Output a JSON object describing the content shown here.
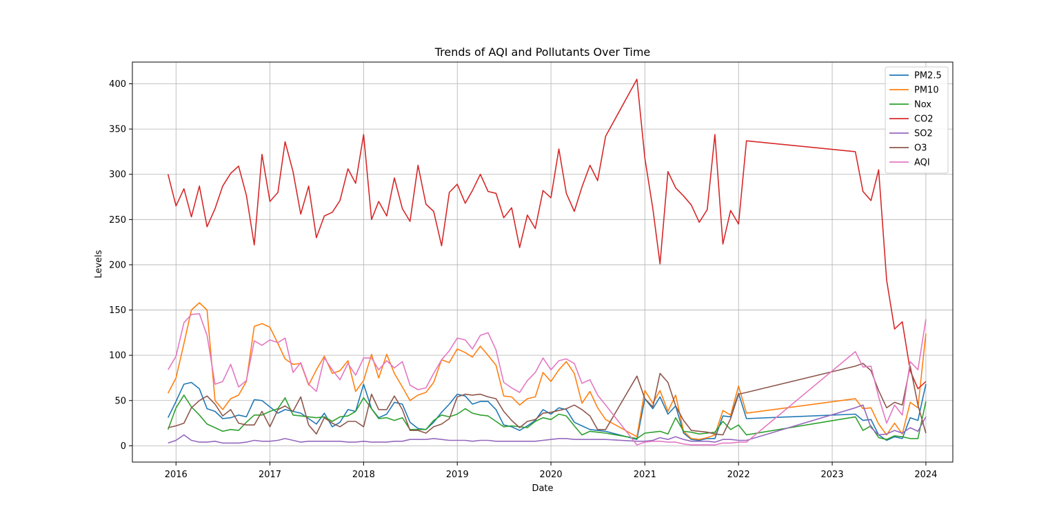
{
  "chart_data": {
    "type": "line",
    "title": "Trends of AQI and Pollutants Over Time",
    "xlabel": "Date",
    "ylabel": "Levels",
    "xlim": [
      "2015-07-15",
      "2024-04-15"
    ],
    "ylim": [
      -18,
      424
    ],
    "x_ticks": [
      "2016",
      "2017",
      "2018",
      "2019",
      "2020",
      "2021",
      "2022",
      "2023",
      "2024"
    ],
    "y_ticks": [
      0,
      50,
      100,
      150,
      200,
      250,
      300,
      350,
      400
    ],
    "grid": true,
    "legend_position": "top-right",
    "x": [
      "2015-12",
      "2016-01",
      "2016-02",
      "2016-03",
      "2016-04",
      "2016-05",
      "2016-06",
      "2016-07",
      "2016-08",
      "2016-09",
      "2016-10",
      "2016-11",
      "2016-12",
      "2017-01",
      "2017-02",
      "2017-03",
      "2017-04",
      "2017-05",
      "2017-06",
      "2017-07",
      "2017-08",
      "2017-09",
      "2017-10",
      "2017-11",
      "2017-12",
      "2018-01",
      "2018-02",
      "2018-03",
      "2018-04",
      "2018-05",
      "2018-06",
      "2018-07",
      "2018-08",
      "2018-09",
      "2018-10",
      "2018-11",
      "2018-12",
      "2019-01",
      "2019-02",
      "2019-03",
      "2019-04",
      "2019-05",
      "2019-06",
      "2019-07",
      "2019-08",
      "2019-09",
      "2019-10",
      "2019-11",
      "2019-12",
      "2020-01",
      "2020-02",
      "2020-03",
      "2020-04",
      "2020-05",
      "2020-06",
      "2020-07",
      "2020-08",
      "2020-12",
      "2021-01",
      "2021-02",
      "2021-03",
      "2021-04",
      "2021-05",
      "2021-06",
      "2021-07",
      "2021-08",
      "2021-09",
      "2021-10",
      "2021-11",
      "2021-12",
      "2022-01",
      "2022-02",
      "2023-04",
      "2023-05",
      "2023-06",
      "2023-07",
      "2023-08",
      "2023-09",
      "2023-10",
      "2023-11",
      "2023-12",
      "2024-01"
    ],
    "series": [
      {
        "name": "PM2.5",
        "color": "#1f77b4",
        "values": [
          31,
          49,
          68,
          70,
          63,
          41,
          38,
          30,
          31,
          34,
          32,
          51,
          50,
          43,
          36,
          40,
          38,
          36,
          30,
          24,
          36,
          21,
          26,
          40,
          38,
          68,
          41,
          31,
          35,
          48,
          46,
          26,
          19,
          18,
          26,
          37,
          46,
          57,
          55,
          46,
          49,
          49,
          40,
          23,
          21,
          17,
          22,
          28,
          40,
          35,
          42,
          40,
          26,
          22,
          18,
          17,
          16,
          7,
          52,
          41,
          54,
          35,
          44,
          14,
          7,
          6,
          8,
          8,
          33,
          32,
          58,
          30,
          35,
          28,
          29,
          12,
          6,
          10,
          8,
          31,
          28,
          68
        ]
      },
      {
        "name": "PM10",
        "color": "#ff7f0e",
        "values": [
          58,
          75,
          113,
          150,
          158,
          150,
          50,
          40,
          52,
          56,
          71,
          132,
          135,
          131,
          113,
          96,
          90,
          91,
          67,
          84,
          99,
          80,
          83,
          94,
          60,
          72,
          101,
          75,
          101,
          80,
          65,
          50,
          56,
          59,
          70,
          95,
          92,
          107,
          103,
          98,
          110,
          100,
          89,
          55,
          54,
          45,
          52,
          54,
          81,
          71,
          84,
          93,
          80,
          47,
          60,
          42,
          29,
          10,
          61,
          47,
          61,
          38,
          56,
          16,
          8,
          7,
          9,
          12,
          39,
          34,
          66,
          36,
          52,
          41,
          42,
          24,
          12,
          25,
          13,
          48,
          42,
          124
        ]
      },
      {
        "name": "Nox",
        "color": "#2ca02c",
        "values": [
          18,
          42,
          56,
          43,
          34,
          24,
          20,
          16,
          18,
          17,
          26,
          34,
          34,
          38,
          41,
          53,
          34,
          33,
          32,
          31,
          32,
          27,
          32,
          33,
          38,
          53,
          41,
          30,
          31,
          28,
          31,
          18,
          18,
          18,
          28,
          34,
          32,
          35,
          41,
          36,
          34,
          33,
          27,
          21,
          22,
          21,
          20,
          27,
          31,
          29,
          35,
          33,
          22,
          12,
          16,
          15,
          14,
          8,
          14,
          15,
          16,
          13,
          31,
          16,
          15,
          13,
          14,
          15,
          27,
          18,
          23,
          12,
          32,
          17,
          22,
          9,
          7,
          11,
          10,
          8,
          8,
          49
        ]
      },
      {
        "name": "CO2",
        "color": "#d62728",
        "values": [
          300,
          265,
          284,
          253,
          287,
          242,
          262,
          287,
          301,
          309,
          277,
          222,
          322,
          270,
          280,
          336,
          303,
          256,
          287,
          230,
          254,
          258,
          271,
          306,
          290,
          344,
          250,
          270,
          254,
          296,
          262,
          248,
          310,
          267,
          259,
          221,
          280,
          289,
          268,
          282,
          300,
          281,
          279,
          252,
          263,
          219,
          255,
          240,
          282,
          274,
          328,
          279,
          259,
          286,
          310,
          293,
          342,
          405,
          318,
          262,
          201,
          303,
          285,
          276,
          266,
          247,
          261,
          344,
          223,
          260,
          245,
          337,
          325,
          281,
          271,
          305,
          183,
          129,
          137,
          83,
          63,
          71
        ]
      },
      {
        "name": "SO2",
        "color": "#9467bd",
        "values": [
          3,
          6,
          12,
          6,
          4,
          4,
          5,
          3,
          3,
          3,
          4,
          6,
          5,
          5,
          6,
          8,
          6,
          4,
          5,
          5,
          5,
          5,
          5,
          4,
          4,
          5,
          4,
          4,
          4,
          5,
          5,
          7,
          7,
          7,
          8,
          7,
          6,
          6,
          6,
          5,
          6,
          6,
          5,
          5,
          5,
          5,
          5,
          5,
          6,
          7,
          8,
          8,
          7,
          7,
          7,
          7,
          7,
          5,
          5,
          6,
          9,
          7,
          10,
          7,
          5,
          5,
          5,
          4,
          7,
          7,
          6,
          6,
          42,
          45,
          20,
          12,
          13,
          17,
          14,
          20,
          16,
          32
        ]
      },
      {
        "name": "O3",
        "color": "#8c564b",
        "values": [
          20,
          22,
          25,
          42,
          50,
          55,
          46,
          33,
          40,
          25,
          23,
          23,
          38,
          21,
          40,
          44,
          38,
          54,
          23,
          13,
          31,
          25,
          21,
          27,
          27,
          21,
          57,
          40,
          40,
          55,
          40,
          17,
          17,
          14,
          21,
          24,
          30,
          54,
          57,
          56,
          57,
          54,
          52,
          38,
          28,
          20,
          27,
          29,
          36,
          37,
          39,
          41,
          45,
          40,
          33,
          18,
          18,
          77,
          52,
          43,
          80,
          70,
          44,
          28,
          17,
          16,
          15,
          13,
          12,
          30,
          57,
          59,
          88,
          91,
          83,
          61,
          42,
          48,
          45,
          88,
          45,
          14
        ]
      },
      {
        "name": "AQI",
        "color": "#e377c2",
        "values": [
          84,
          99,
          136,
          145,
          146,
          122,
          68,
          71,
          90,
          65,
          72,
          116,
          111,
          117,
          114,
          119,
          81,
          92,
          68,
          60,
          97,
          84,
          73,
          91,
          78,
          97,
          97,
          84,
          94,
          86,
          93,
          67,
          62,
          64,
          80,
          95,
          105,
          119,
          117,
          107,
          122,
          125,
          106,
          70,
          64,
          59,
          72,
          81,
          97,
          84,
          94,
          96,
          91,
          69,
          73,
          56,
          45,
          1,
          4,
          5,
          5,
          4,
          4,
          2,
          1,
          1,
          1,
          1,
          3,
          3,
          4,
          4,
          104,
          87,
          88,
          54,
          25,
          45,
          34,
          93,
          84,
          140
        ]
      }
    ]
  }
}
